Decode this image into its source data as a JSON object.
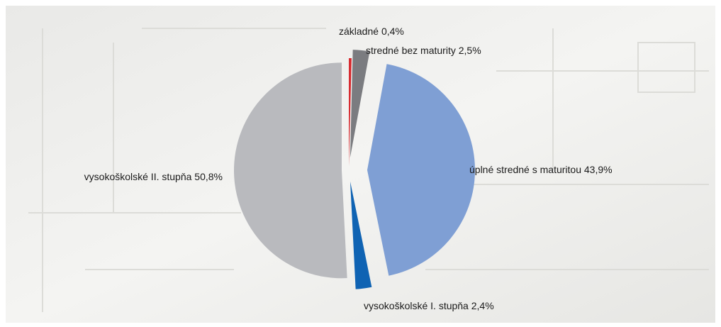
{
  "chart_data": {
    "type": "pie",
    "categories": [
      "základné",
      "stredné bez maturity",
      "úplné stredné s maturitou",
      "vysokoškolské I. stupňa",
      "vysokoškolské II. stupňa"
    ],
    "values": [
      0.4,
      2.5,
      43.9,
      2.4,
      50.8
    ],
    "value_labels": [
      "0,4%",
      "2,5%",
      "43,9%",
      "2,4%",
      "50,8%"
    ],
    "colors": [
      "#d7262b",
      "#7b7c80",
      "#7f9fd4",
      "#0f63b3",
      "#b9babe"
    ]
  }
}
